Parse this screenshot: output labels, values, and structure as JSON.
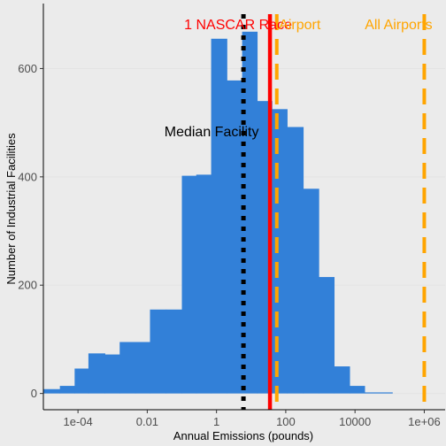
{
  "chart_data": {
    "type": "bar",
    "xlabel": "Annual Emissions (pounds)",
    "ylabel": "Number of Industrial Facilities",
    "x_scale": "log10",
    "xlim": [
      1e-05,
      4000000
    ],
    "ylim": [
      -30,
      720
    ],
    "x_ticks": [
      {
        "value": 0.0001,
        "label": "1e-04"
      },
      {
        "value": 0.01,
        "label": "0.01"
      },
      {
        "value": 1,
        "label": "1"
      },
      {
        "value": 100,
        "label": "100"
      },
      {
        "value": 10000,
        "label": "10000"
      },
      {
        "value": 1000000,
        "label": "1e+06"
      }
    ],
    "y_ticks": [
      {
        "value": 0,
        "label": "0"
      },
      {
        "value": 200,
        "label": "200"
      },
      {
        "value": 400,
        "label": "400"
      },
      {
        "value": 600,
        "label": "600"
      }
    ],
    "bars": [
      {
        "x0": 1e-05,
        "x1": 3e-05,
        "value": 8
      },
      {
        "x0": 3e-05,
        "x1": 8e-05,
        "value": 14
      },
      {
        "x0": 8e-05,
        "x1": 0.0002,
        "value": 46
      },
      {
        "x0": 0.0002,
        "x1": 0.0006,
        "value": 74
      },
      {
        "x0": 0.0006,
        "x1": 0.0016,
        "value": 72
      },
      {
        "x0": 0.0016,
        "x1": 0.0045,
        "value": 95
      },
      {
        "x0": 0.0045,
        "x1": 0.012,
        "value": 95
      },
      {
        "x0": 0.012,
        "x1": 0.035,
        "value": 155
      },
      {
        "x0": 0.035,
        "x1": 0.1,
        "value": 155
      },
      {
        "x0": 0.1,
        "x1": 0.26,
        "value": 402
      },
      {
        "x0": 0.26,
        "x1": 0.7,
        "value": 404
      },
      {
        "x0": 0.7,
        "x1": 2,
        "value": 655
      },
      {
        "x0": 2,
        "x1": 5.5,
        "value": 578
      },
      {
        "x0": 5.5,
        "x1": 15,
        "value": 668
      },
      {
        "x0": 15,
        "x1": 40,
        "value": 540
      },
      {
        "x0": 40,
        "x1": 110,
        "value": 525
      },
      {
        "x0": 110,
        "x1": 320,
        "value": 492
      },
      {
        "x0": 320,
        "x1": 900,
        "value": 378
      },
      {
        "x0": 900,
        "x1": 2500,
        "value": 215
      },
      {
        "x0": 2500,
        "x1": 7000,
        "value": 50
      },
      {
        "x0": 7000,
        "x1": 19000,
        "value": 14
      },
      {
        "x0": 19000,
        "x1": 120000,
        "value": 2
      }
    ],
    "bar_color": "#3280d8",
    "reference_lines": [
      {
        "label": "Median Facility",
        "x": 6,
        "color": "#000000",
        "style": "dotted"
      },
      {
        "label": "1 NASCAR Race",
        "x": 35,
        "color": "#ff0000",
        "style": "solid"
      },
      {
        "label": "Airport",
        "x": 55,
        "color": "#ffa500",
        "style": "dashed"
      },
      {
        "label": "All Airports",
        "x": 1000000,
        "color": "#ffa500",
        "style": "dashed"
      }
    ]
  }
}
